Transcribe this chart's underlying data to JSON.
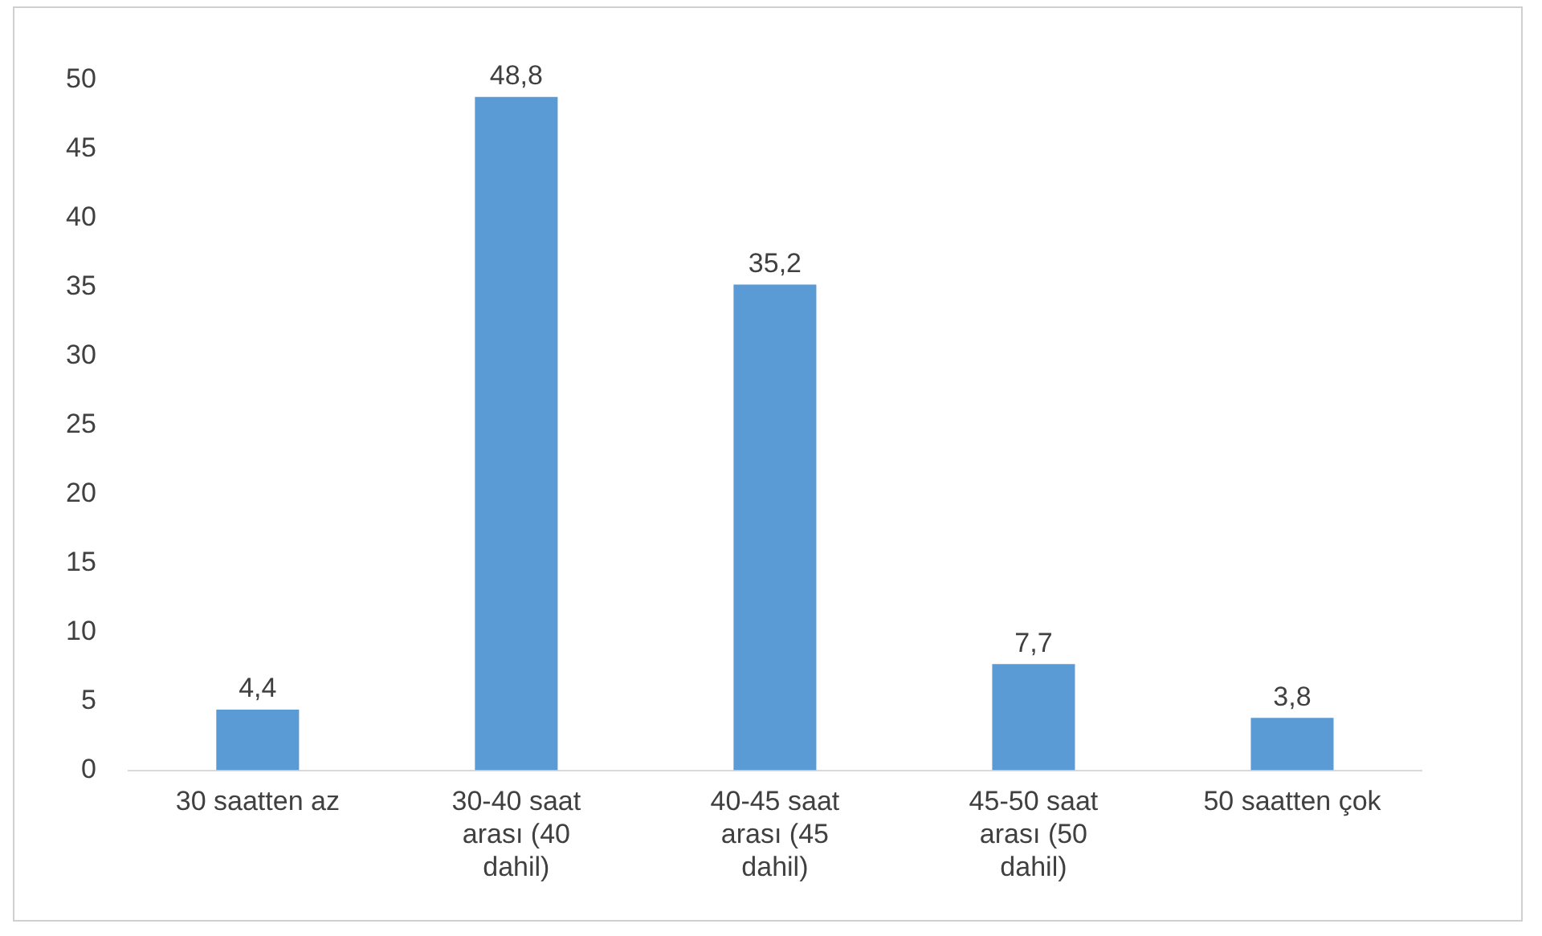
{
  "chart_data": {
    "type": "bar",
    "categories": [
      "30 saatten az",
      "30-40 saat arası (40 dahil)",
      "40-45 saat arası (45 dahil)",
      "45-50 saat arası (50 dahil)",
      "50 saatten çok"
    ],
    "values": [
      4.4,
      48.8,
      35.2,
      7.7,
      3.8
    ],
    "value_labels": [
      "4,4",
      "48,8",
      "35,2",
      "7,7",
      "3,8"
    ],
    "color": "#5b9bd5",
    "ylim": [
      0,
      50
    ],
    "yticks": [
      0,
      5,
      10,
      15,
      20,
      25,
      30,
      35,
      40,
      45,
      50
    ],
    "grid": false,
    "legend": false
  }
}
